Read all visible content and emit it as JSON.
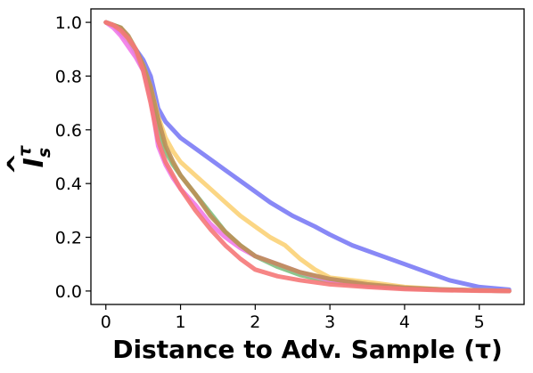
{
  "chart_data": {
    "type": "line",
    "title": "",
    "xlabel": "Distance to Adv. Sample (τ)",
    "ylabel": {
      "base": "I",
      "hat": "^",
      "subscript": "s",
      "superscript": "τ"
    },
    "xlim": [
      -0.2,
      5.6
    ],
    "ylim": [
      -0.05,
      1.05
    ],
    "xticks": [
      0,
      1,
      2,
      3,
      4,
      5
    ],
    "yticks": [
      0.0,
      0.2,
      0.4,
      0.6,
      0.8,
      1.0
    ],
    "xtick_labels": [
      "0",
      "1",
      "2",
      "3",
      "4",
      "5"
    ],
    "ytick_labels": [
      "0.0",
      "0.2",
      "0.4",
      "0.6",
      "0.8",
      "1.0"
    ],
    "grid": false,
    "legend": "none",
    "series": [
      {
        "color": "#7b7bf5",
        "x": [
          0.0,
          0.1,
          0.2,
          0.3,
          0.4,
          0.5,
          0.6,
          0.65,
          0.7,
          0.8,
          0.9,
          1.0,
          1.2,
          1.4,
          1.6,
          1.8,
          2.0,
          2.2,
          2.5,
          2.8,
          3.0,
          3.3,
          3.6,
          4.0,
          4.3,
          4.6,
          5.0,
          5.4
        ],
        "y": [
          1.0,
          0.99,
          0.96,
          0.93,
          0.9,
          0.86,
          0.8,
          0.74,
          0.68,
          0.63,
          0.6,
          0.57,
          0.53,
          0.49,
          0.45,
          0.41,
          0.37,
          0.33,
          0.28,
          0.24,
          0.21,
          0.17,
          0.14,
          0.1,
          0.07,
          0.04,
          0.015,
          0.005
        ]
      },
      {
        "color": "#fbd277",
        "x": [
          0.0,
          0.1,
          0.2,
          0.3,
          0.4,
          0.5,
          0.6,
          0.7,
          0.8,
          0.9,
          1.0,
          1.2,
          1.4,
          1.6,
          1.8,
          2.0,
          2.2,
          2.4,
          2.6,
          2.8,
          3.0,
          3.3,
          3.6,
          4.0,
          4.5,
          5.0,
          5.4
        ],
        "y": [
          1.0,
          0.99,
          0.97,
          0.93,
          0.89,
          0.84,
          0.76,
          0.65,
          0.57,
          0.52,
          0.48,
          0.43,
          0.38,
          0.33,
          0.28,
          0.24,
          0.2,
          0.17,
          0.12,
          0.08,
          0.05,
          0.04,
          0.03,
          0.015,
          0.006,
          0.003,
          0.0
        ]
      },
      {
        "color": "#7fc07f",
        "x": [
          0.0,
          0.1,
          0.2,
          0.3,
          0.4,
          0.5,
          0.6,
          0.7,
          0.8,
          0.9,
          1.0,
          1.2,
          1.4,
          1.6,
          1.8,
          2.0,
          2.3,
          2.6,
          3.0,
          3.5,
          4.0,
          4.5,
          5.0,
          5.4
        ],
        "y": [
          1.0,
          0.99,
          0.98,
          0.94,
          0.88,
          0.82,
          0.72,
          0.6,
          0.52,
          0.47,
          0.43,
          0.36,
          0.29,
          0.22,
          0.17,
          0.13,
          0.09,
          0.06,
          0.035,
          0.02,
          0.01,
          0.005,
          0.002,
          0.0
        ]
      },
      {
        "color": "#f17ae8",
        "x": [
          0.0,
          0.1,
          0.2,
          0.3,
          0.4,
          0.5,
          0.6,
          0.65,
          0.7,
          0.8,
          0.9,
          1.0,
          1.2,
          1.4,
          1.6,
          1.8,
          2.0,
          2.3,
          2.6,
          3.0,
          3.5,
          4.0,
          4.5,
          5.0,
          5.4
        ],
        "y": [
          1.0,
          0.98,
          0.95,
          0.91,
          0.87,
          0.82,
          0.72,
          0.63,
          0.54,
          0.47,
          0.42,
          0.38,
          0.32,
          0.25,
          0.2,
          0.16,
          0.13,
          0.1,
          0.07,
          0.04,
          0.02,
          0.01,
          0.005,
          0.002,
          0.0
        ]
      },
      {
        "color": "#bb8f57",
        "x": [
          0.0,
          0.1,
          0.2,
          0.3,
          0.4,
          0.5,
          0.6,
          0.7,
          0.8,
          0.9,
          1.0,
          1.2,
          1.4,
          1.6,
          1.8,
          2.0,
          2.3,
          2.6,
          3.0,
          3.5,
          4.0,
          4.5,
          5.0,
          5.4
        ],
        "y": [
          1.0,
          0.99,
          0.98,
          0.95,
          0.9,
          0.84,
          0.76,
          0.64,
          0.54,
          0.48,
          0.43,
          0.36,
          0.28,
          0.22,
          0.17,
          0.13,
          0.1,
          0.07,
          0.045,
          0.025,
          0.012,
          0.006,
          0.002,
          0.0
        ]
      },
      {
        "color": "#f57878",
        "x": [
          0.0,
          0.1,
          0.2,
          0.3,
          0.4,
          0.5,
          0.6,
          0.7,
          0.8,
          0.9,
          1.0,
          1.2,
          1.4,
          1.6,
          1.8,
          2.0,
          2.3,
          2.6,
          3.0,
          3.5,
          4.0,
          4.5,
          5.0,
          5.4
        ],
        "y": [
          1.0,
          0.99,
          0.97,
          0.94,
          0.9,
          0.82,
          0.7,
          0.56,
          0.48,
          0.43,
          0.38,
          0.3,
          0.23,
          0.17,
          0.12,
          0.08,
          0.055,
          0.04,
          0.025,
          0.015,
          0.007,
          0.003,
          0.001,
          0.0
        ]
      }
    ]
  }
}
